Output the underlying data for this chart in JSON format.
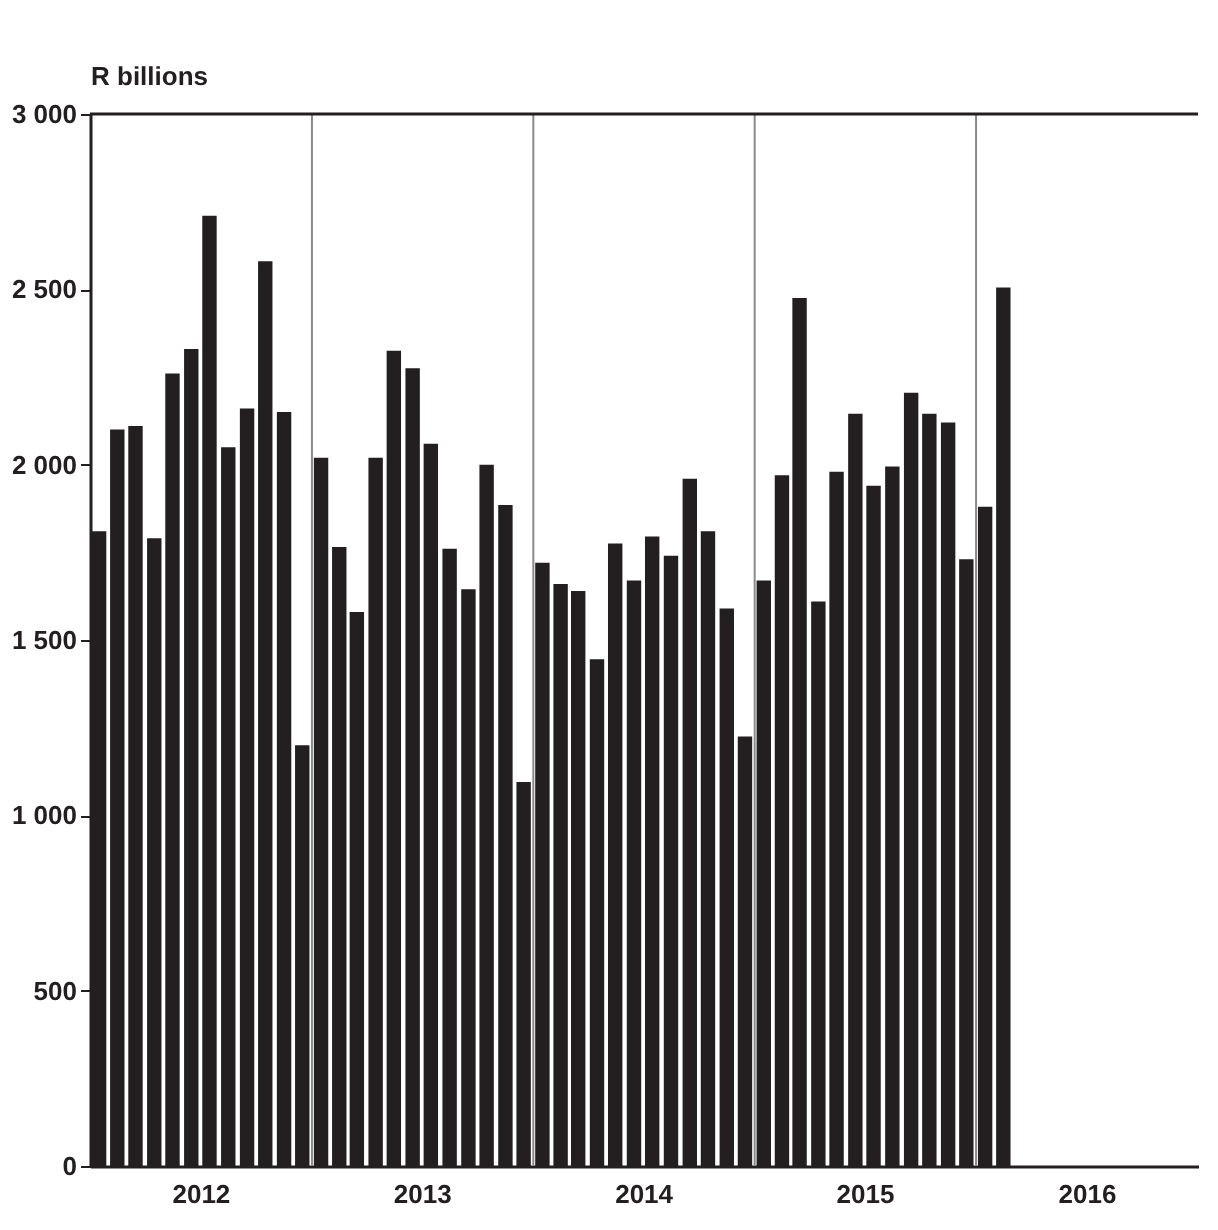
{
  "chart_data": {
    "type": "bar",
    "ylabel": "R billions",
    "color": "#231f20",
    "x": [
      "2012-01-16",
      "2012-02-15",
      "2012-03-16",
      "2012-04-16",
      "2012-05-16",
      "2012-06-16",
      "2012-07-16",
      "2012-08-16",
      "2012-09-16",
      "2012-10-16",
      "2012-11-16",
      "2012-12-16",
      "2013-01-16",
      "2013-02-15",
      "2013-03-16",
      "2013-04-16",
      "2013-05-16",
      "2013-06-16",
      "2013-07-16",
      "2013-08-16",
      "2013-09-16",
      "2013-10-16",
      "2013-11-16",
      "2013-12-16",
      "2014-01-16",
      "2014-02-15",
      "2014-03-16",
      "2014-04-16",
      "2014-05-16",
      "2014-06-16",
      "2014-07-16",
      "2014-08-16",
      "2014-09-16",
      "2014-10-16",
      "2014-11-16",
      "2014-12-16",
      "2015-01-16",
      "2015-02-15",
      "2015-03-16",
      "2015-04-16",
      "2015-05-16",
      "2015-06-16",
      "2015-07-16",
      "2015-08-16",
      "2015-09-16",
      "2015-10-16",
      "2015-11-16",
      "2015-12-16",
      "2016-01-16",
      "2016-02-15"
    ],
    "values": [
      1810,
      2100,
      2110,
      1790,
      2260,
      2330,
      2710,
      2050,
      2160,
      2580,
      2150,
      1200,
      2020,
      1765,
      1580,
      2020,
      2325,
      2275,
      2060,
      1760,
      1645,
      2000,
      1885,
      1095,
      1720,
      1660,
      1640,
      1445,
      1775,
      1670,
      1795,
      1740,
      1960,
      1810,
      1590,
      1225,
      1670,
      1970,
      2475,
      1610,
      1980,
      2145,
      1940,
      1995,
      2205,
      2145,
      2120,
      1730,
      1880,
      2505
    ],
    "xlim": [
      "2012-01",
      "2017-01"
    ],
    "xticks": [
      {
        "value": "2012-07",
        "label": "2012"
      },
      {
        "value": "2013-07",
        "label": "2013"
      },
      {
        "value": "2014-07",
        "label": "2014"
      },
      {
        "value": "2015-07",
        "label": "2015"
      },
      {
        "value": "2016-07",
        "label": "2016"
      }
    ],
    "ylim": [
      0,
      3000
    ],
    "yticks": [
      0,
      500,
      {
        "value": 1000,
        "label": "1 000"
      },
      {
        "value": 1500,
        "label": "1 500"
      },
      {
        "value": 2000,
        "label": "2 000"
      },
      {
        "value": 2500,
        "label": "2 500"
      },
      {
        "value": 3000,
        "label": "3 000"
      }
    ],
    "ref_lines": [
      {
        "axis": "x",
        "value": "2013-01",
        "color": "#8a8a8a"
      },
      {
        "axis": "x",
        "value": "2014-01",
        "color": "#8a8a8a"
      },
      {
        "axis": "x",
        "value": "2015-01",
        "color": "#8a8a8a"
      },
      {
        "axis": "x",
        "value": "2016-01",
        "color": "#8a8a8a"
      }
    ],
    "grid": false
  }
}
